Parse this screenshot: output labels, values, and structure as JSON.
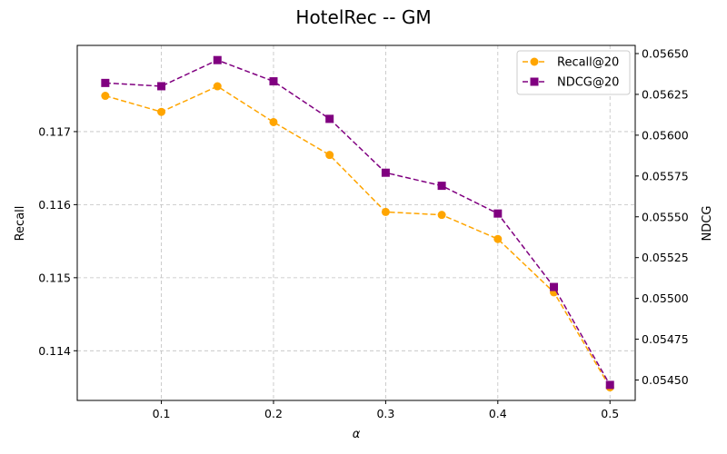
{
  "chart_data": {
    "type": "line",
    "title": "HotelRec -- GM",
    "xlabel": "α",
    "ylabel_left": "Recall",
    "ylabel_right": "NDCG",
    "x": [
      0.05,
      0.1,
      0.15,
      0.2,
      0.25,
      0.3,
      0.35,
      0.4,
      0.45,
      0.5
    ],
    "xlim": [
      0.025,
      0.5225
    ],
    "x_ticks": [
      0.1,
      0.2,
      0.3,
      0.4,
      0.5
    ],
    "x_tick_labels": [
      "0.1",
      "0.2",
      "0.3",
      "0.4",
      "0.5"
    ],
    "ylim_left": [
      0.11332,
      0.11818
    ],
    "y_ticks_left": [
      0.114,
      0.115,
      0.116,
      0.117
    ],
    "y_tick_labels_left": [
      "0.114",
      "0.115",
      "0.116",
      "0.117"
    ],
    "ylim_right": [
      0.054375,
      0.05655
    ],
    "y_ticks_right": [
      0.0545,
      0.05475,
      0.055,
      0.05525,
      0.0555,
      0.05575,
      0.056,
      0.05625,
      0.0565
    ],
    "y_tick_labels_right": [
      "0.05450",
      "0.05475",
      "0.05500",
      "0.05525",
      "0.05550",
      "0.05575",
      "0.05600",
      "0.05625",
      "0.05650"
    ],
    "grid": true,
    "legend_position": "top-right",
    "series": [
      {
        "name": "Recall@20",
        "axis": "left",
        "color": "#FFA500",
        "marker": "circle",
        "linestyle": "dashed",
        "values": [
          0.11749,
          0.11727,
          0.11762,
          0.11713,
          0.11668,
          0.1159,
          0.11586,
          0.11553,
          0.1148,
          0.1135
        ]
      },
      {
        "name": "NDCG@20",
        "axis": "right",
        "color": "#800080",
        "marker": "square",
        "linestyle": "dashed",
        "values": [
          0.05632,
          0.0563,
          0.05646,
          0.05633,
          0.0561,
          0.05577,
          0.05569,
          0.05552,
          0.05507,
          0.05447
        ]
      }
    ]
  }
}
